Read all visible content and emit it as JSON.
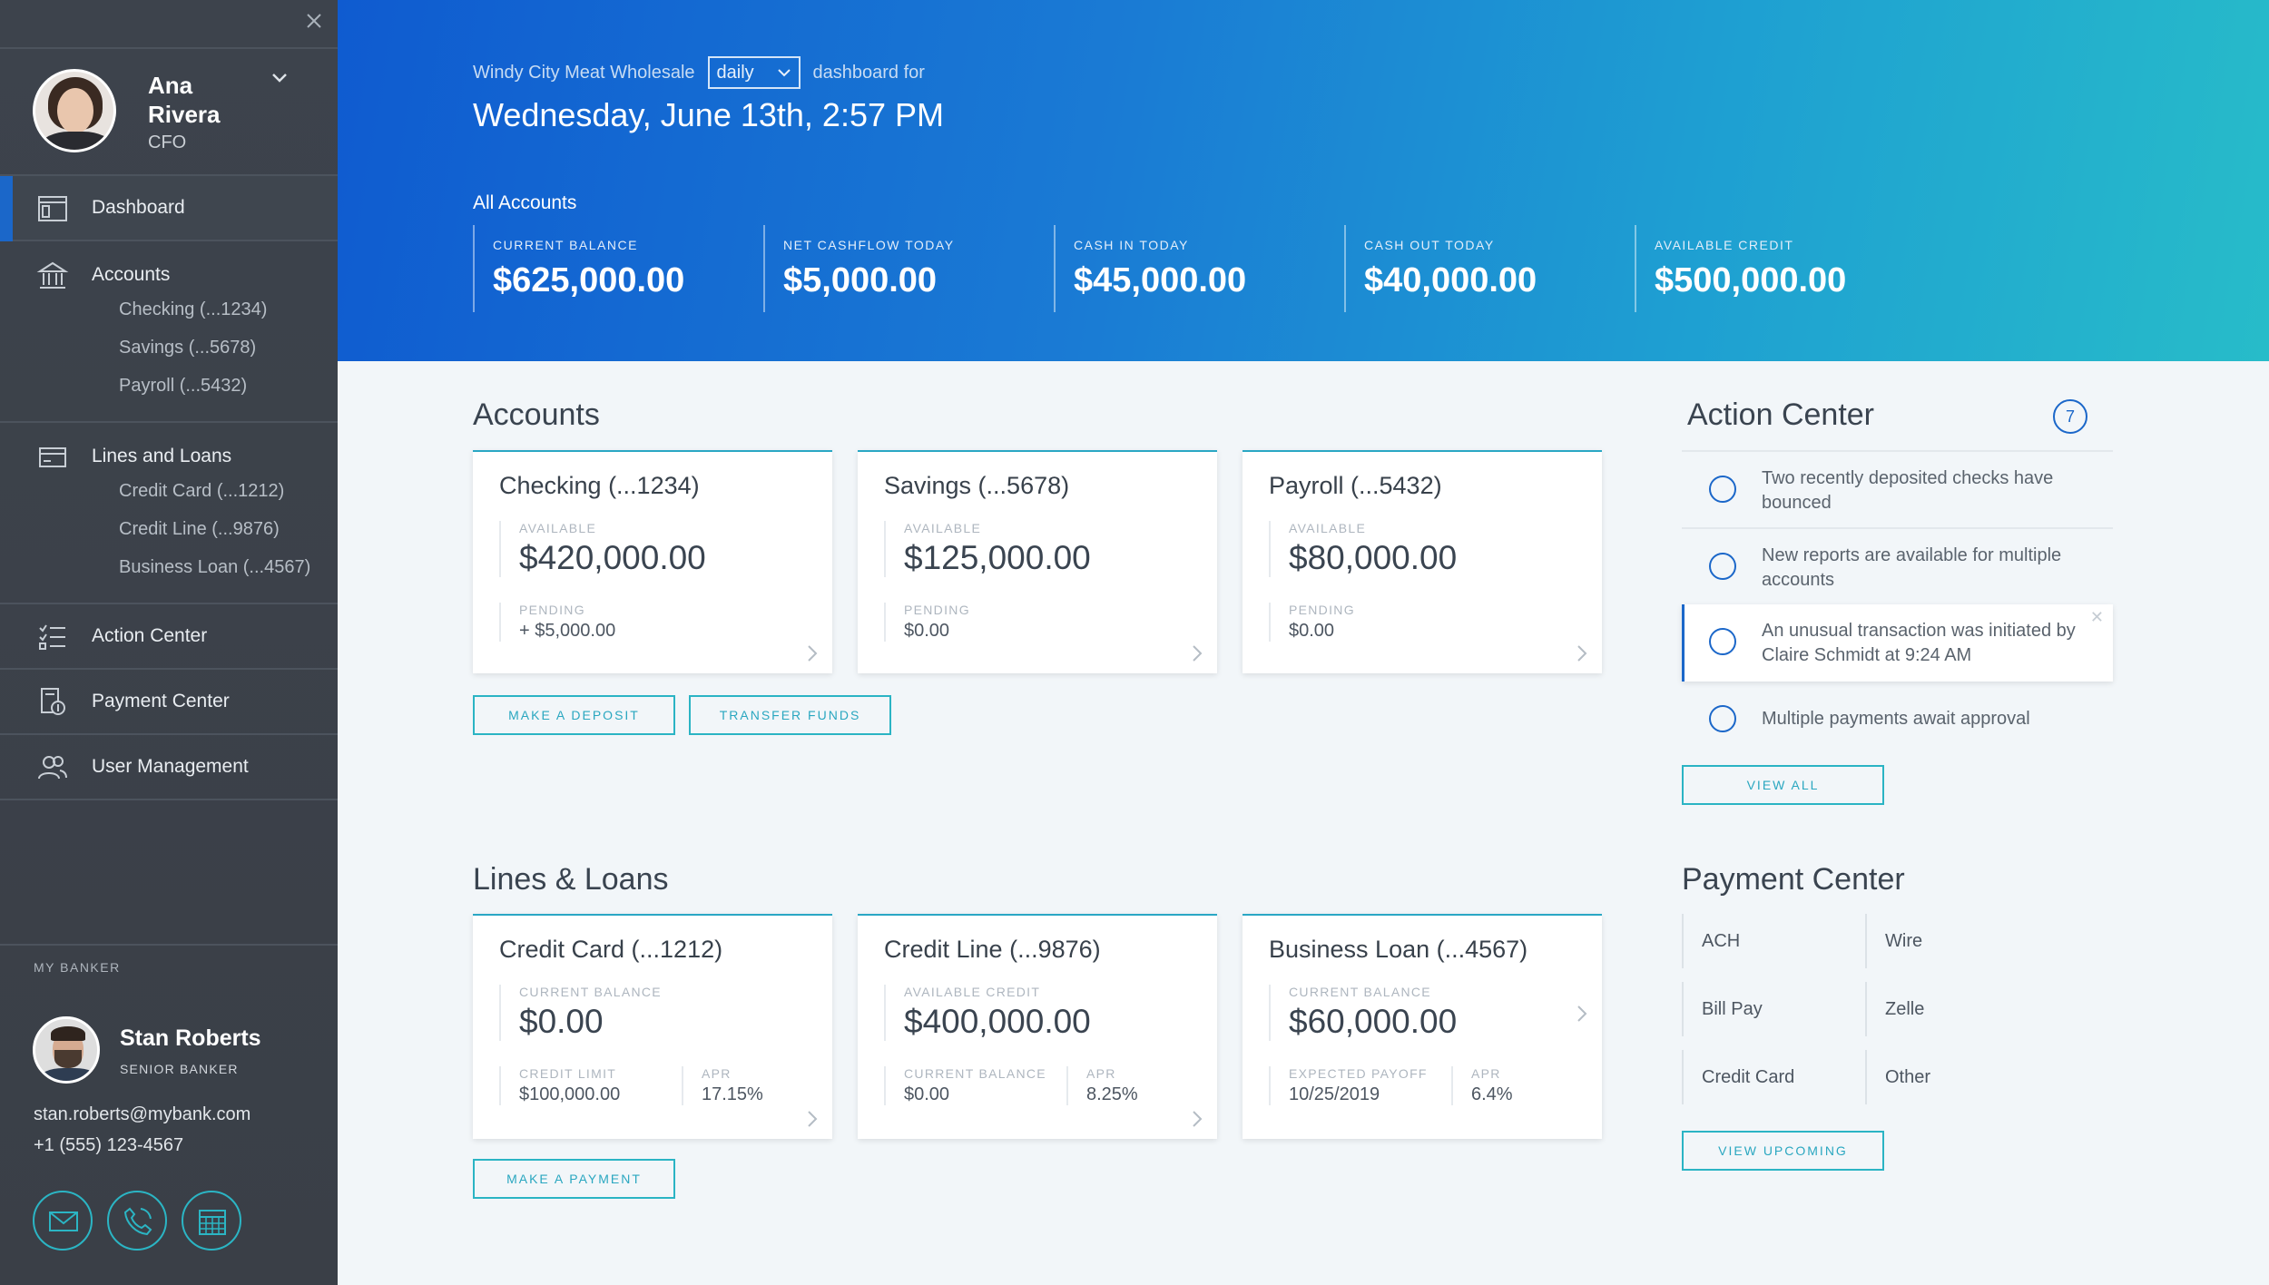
{
  "sidebar": {
    "close_icon": "close-icon",
    "profile": {
      "name": "Ana Rivera",
      "role": "CFO"
    },
    "nav": {
      "dashboard": "Dashboard",
      "accounts": {
        "label": "Accounts",
        "items": [
          "Checking (...1234)",
          "Savings (...5678)",
          "Payroll (...5432)"
        ]
      },
      "lines": {
        "label": "Lines and Loans",
        "items": [
          "Credit Card (...1212)",
          "Credit Line (...9876)",
          "Business Loan (...4567)"
        ]
      },
      "action_center": "Action Center",
      "payment_center": "Payment Center",
      "user_management": "User Management"
    },
    "banker": {
      "title": "MY BANKER",
      "name": "Stan Roberts",
      "role": "SENIOR BANKER",
      "email": "stan.roberts@mybank.com",
      "phone": "+1 (555) 123-4567"
    }
  },
  "hero": {
    "company": "Windy City Meat Wholesale",
    "period": "daily",
    "suffix": "dashboard for",
    "date": "Wednesday, June 13th, 2:57 PM",
    "scope": "All Accounts",
    "stats": [
      {
        "label": "CURRENT BALANCE",
        "value": "$625,000.00"
      },
      {
        "label": "NET CASHFLOW TODAY",
        "value": "$5,000.00"
      },
      {
        "label": "CASH IN TODAY",
        "value": "$45,000.00"
      },
      {
        "label": "CASH OUT TODAY",
        "value": "$40,000.00"
      },
      {
        "label": "AVAILABLE CREDIT",
        "value": "$500,000.00"
      }
    ]
  },
  "accounts": {
    "title": "Accounts",
    "cards": [
      {
        "name": "Checking (...1234)",
        "avail_label": "AVAILABLE",
        "avail": "$420,000.00",
        "pend_label": "PENDING",
        "pend": "+ $5,000.00"
      },
      {
        "name": "Savings (...5678)",
        "avail_label": "AVAILABLE",
        "avail": "$125,000.00",
        "pend_label": "PENDING",
        "pend": "$0.00"
      },
      {
        "name": "Payroll (...5432)",
        "avail_label": "AVAILABLE",
        "avail": "$80,000.00",
        "pend_label": "PENDING",
        "pend": "$0.00"
      }
    ],
    "deposit_btn": "MAKE A DEPOSIT",
    "transfer_btn": "TRANSFER FUNDS"
  },
  "loans": {
    "title": "Lines & Loans",
    "cards": [
      {
        "name": "Credit Card (...1212)",
        "main_label": "CURRENT BALANCE",
        "main": "$0.00",
        "a_label": "CREDIT LIMIT",
        "a": "$100,000.00",
        "b_label": "APR",
        "b": "17.15%"
      },
      {
        "name": "Credit Line (...9876)",
        "main_label": "AVAILABLE CREDIT",
        "main": "$400,000.00",
        "a_label": "CURRENT BALANCE",
        "a": "$0.00",
        "b_label": "APR",
        "b": "8.25%"
      },
      {
        "name": "Business Loan (...4567)",
        "main_label": "CURRENT BALANCE",
        "main": "$60,000.00",
        "a_label": "EXPECTED PAYOFF",
        "a": "10/25/2019",
        "b_label": "APR",
        "b": "6.4%"
      }
    ],
    "payment_btn": "MAKE A PAYMENT"
  },
  "action_center": {
    "title": "Action Center",
    "count": "7",
    "items": [
      "Two recently deposited checks have bounced",
      "New reports are available for multiple accounts",
      "An unusual transaction was initiated by Claire Schmidt at 9:24 AM",
      "Multiple payments await approval"
    ],
    "view_all": "VIEW ALL"
  },
  "payment_center": {
    "title": "Payment Center",
    "options": [
      "ACH",
      "Wire",
      "Bill Pay",
      "Zelle",
      "Credit Card",
      "Other"
    ],
    "view_upcoming": "VIEW UPCOMING"
  },
  "colors": {
    "accent_blue": "#1b67c9",
    "accent_teal": "#2bb4c4",
    "sidebar_bg": "#3d434c"
  }
}
